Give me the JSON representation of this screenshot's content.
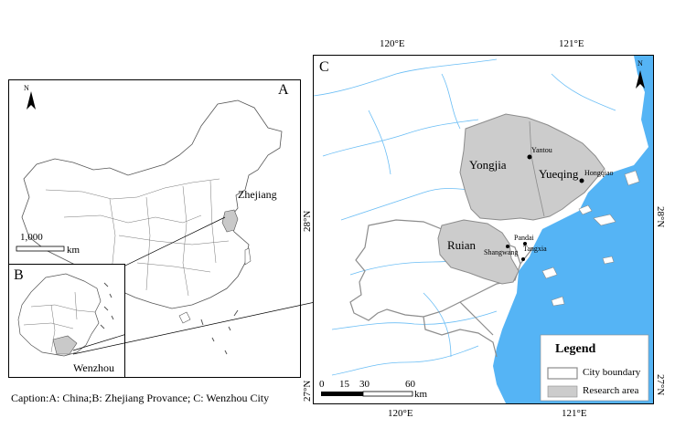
{
  "caption": "Caption:A: China;B: Zhejiang Provance; C: Wenzhou City",
  "panel_a": {
    "letter": "A",
    "north": "N",
    "province_label": "Zhejiang",
    "scale_value": "1,000",
    "scale_unit": "km"
  },
  "panel_b": {
    "letter": "B",
    "city_label": "Wenzhou"
  },
  "panel_c": {
    "letter": "C",
    "north": "N",
    "lon_top": [
      "120°E",
      "121°E"
    ],
    "lon_bottom": [
      "120°E",
      "121°E"
    ],
    "lat_left": [
      "28°N",
      "27°N"
    ],
    "lat_right": [
      "28°N",
      "27°N"
    ],
    "areas": {
      "yongjia": "Yongjia",
      "yueqing": "Yueqing",
      "ruian": "Ruian"
    },
    "sites": {
      "yantou": "Yantou",
      "hongqiao": "Hongqiao",
      "pandai": "Pandai",
      "shangwang": "Shangwang",
      "tangxia": "Tangxia"
    },
    "scale_labels": [
      "0",
      "15",
      "30",
      "60"
    ],
    "scale_unit": "km",
    "legend": {
      "title": "Legend",
      "items": [
        "City boundary",
        "Research area"
      ]
    },
    "colors": {
      "sea": "#55b4f5",
      "research_area": "#cccccc",
      "city_boundary": "#8c8c8c"
    }
  }
}
